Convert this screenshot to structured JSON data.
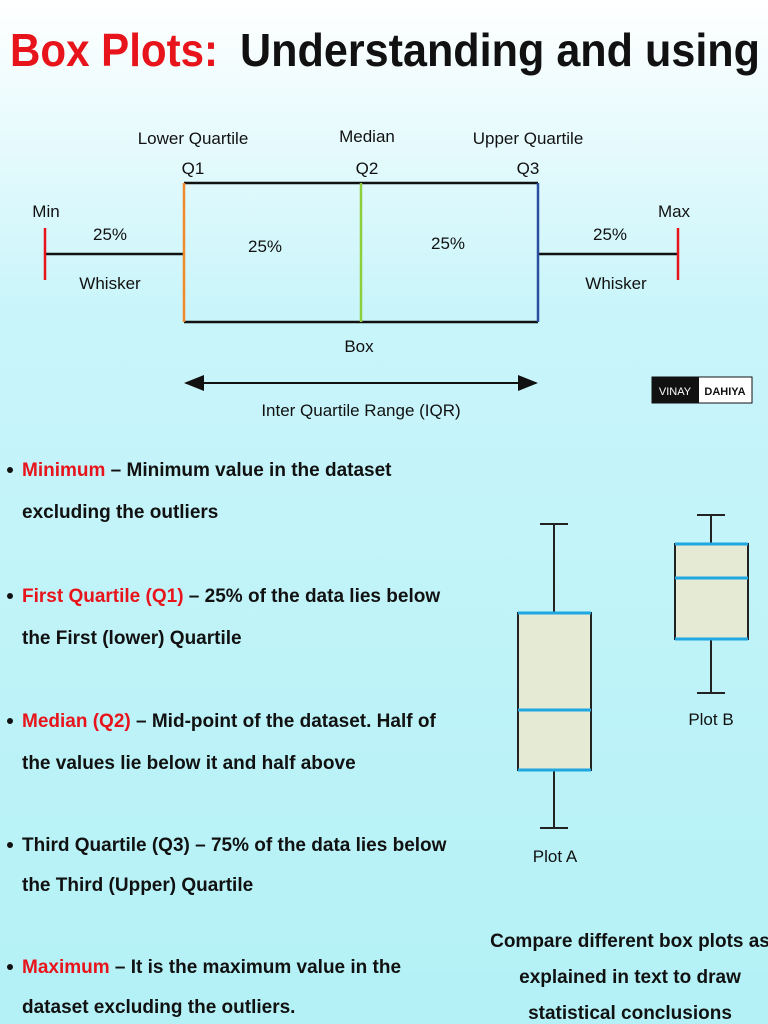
{
  "title": {
    "highlight": "Box Plots:",
    "rest": "Understanding and using"
  },
  "diagram": {
    "min": "Min",
    "max": "Max",
    "q1_name": "Lower Quartile",
    "q1": "Q1",
    "q2_name": "Median",
    "q2": "Q2",
    "q3_name": "Upper Quartile",
    "q3": "Q3",
    "shares": [
      "25%",
      "25%",
      "25%",
      "25%"
    ],
    "whisker_left": "Whisker",
    "whisker_right": "Whisker",
    "box": "Box",
    "iqr": "Inter Quartile Range (IQR)"
  },
  "logo": {
    "first": "VINAY",
    "last": "DAHIYA"
  },
  "bullets": [
    {
      "term": "Minimum",
      "lines": [
        " – Minimum value in the dataset",
        "excluding the outliers"
      ]
    },
    {
      "term": "First Quartile (Q1)",
      "lines": [
        " – 25% of the data lies below",
        "the First (lower) Quartile"
      ]
    },
    {
      "term": "Median (Q2)",
      "lines": [
        " – Mid-point of the dataset. Half of",
        "the values lie below it and half above"
      ]
    },
    {
      "term": "Third Quartile (Q3)",
      "lines": [
        " – 75% of the data lies below",
        "the Third (Upper) Quartile"
      ]
    },
    {
      "term": "Maximum",
      "lines": [
        " – It is the maximum value in the",
        "dataset excluding the outliers."
      ]
    }
  ],
  "plots": {
    "a": "Plot A",
    "b": "Plot B"
  },
  "caption": [
    "Compare different box plots as",
    "explained in text to draw",
    "statistical conclusions"
  ]
}
